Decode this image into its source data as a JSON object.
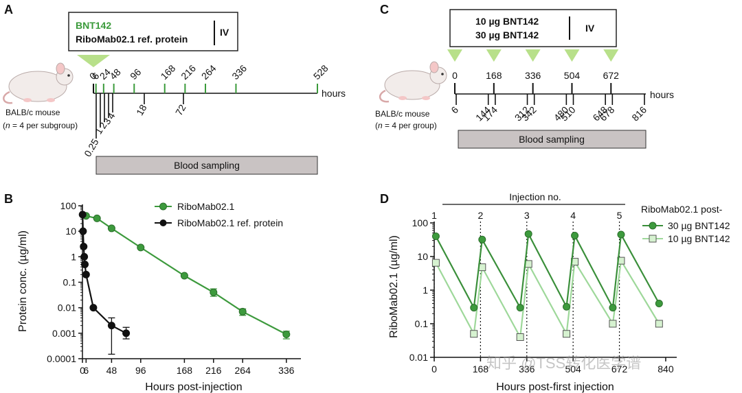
{
  "panels": {
    "A": {
      "letter": "A",
      "legend_top": "BNT142",
      "legend_bottom": "RiboMab02.1 ref. protein",
      "route": "IV",
      "mouse_label": "BALB/c mouse",
      "mouse_n_italic": "n",
      "mouse_n_rest": " = 4 per subgroup)",
      "mouse_n_open": "(",
      "hours_label": "hours",
      "sampling_label": "Blood sampling",
      "timeline_max": 528,
      "top_ticks": [
        {
          "label": "0",
          "value": 0
        },
        {
          "label": "6",
          "value": 6
        },
        {
          "label": "24",
          "value": 24
        },
        {
          "label": "48",
          "value": 48
        },
        {
          "label": "96",
          "value": 96
        },
        {
          "label": "168",
          "value": 168
        },
        {
          "label": "216",
          "value": 216
        },
        {
          "label": "264",
          "value": 264
        },
        {
          "label": "336",
          "value": 336
        },
        {
          "label": "528",
          "value": 528
        }
      ],
      "bottom_ticks": [
        "0.25",
        "1",
        "2",
        "3",
        "4",
        "18",
        "72"
      ]
    },
    "B": {
      "letter": "B",
      "ylabel": "Protein conc. (µg/ml)",
      "xlabel": "Hours post-injection",
      "legend": [
        "RiboMab02.1",
        "RiboMab02.1 ref. protein"
      ]
    },
    "C": {
      "letter": "C",
      "dose_1": "10 µg BNT142",
      "dose_2": "30 µg BNT142",
      "route": "IV",
      "mouse_label": "BALB/c mouse",
      "mouse_n_open": "(",
      "mouse_n_italic": "n",
      "mouse_n_rest": " = 4 per group)",
      "hours_label": "hours",
      "sampling_label": "Blood sampling",
      "top_ticks": [
        "0",
        "168",
        "336",
        "504",
        "672"
      ],
      "bottom_ticks": [
        "6",
        "144",
        "174",
        "312",
        "342",
        "480",
        "510",
        "648",
        "678",
        "816"
      ]
    },
    "D": {
      "letter": "D",
      "ylabel": "RiboMab02.1 (µg/ml)",
      "xlabel": "Hours post-first injection",
      "injection_label": "Injection no.",
      "injection_numbers": [
        "1",
        "2",
        "3",
        "4",
        "5"
      ],
      "legend_title": "RiboMab02.1 post-",
      "legend": [
        "30 µg BNT142",
        "10 µg BNT142"
      ]
    }
  },
  "colors": {
    "green_dark": "#3a8f3a",
    "green_marker": "#3d9a3d",
    "green_light": "#9ed89a",
    "green_light_marker": "#d6f2d0",
    "black": "#111111",
    "gray_bar": "#c9c3c3",
    "triangle": "#b8e08a"
  },
  "watermark": "知乎 @TSS转化医学谱",
  "chart_data": [
    {
      "panel": "B",
      "type": "line",
      "title": "",
      "xlabel": "Hours post-injection",
      "ylabel": "Protein conc. (µg/ml)",
      "yscale": "log",
      "ylim": [
        0.0001,
        100
      ],
      "xlim": [
        0,
        360
      ],
      "x_ticks": [
        0,
        6,
        48,
        96,
        168,
        216,
        264,
        336
      ],
      "y_ticks": [
        {
          "value": 100,
          "label": "100"
        },
        {
          "value": 10,
          "label": "10"
        },
        {
          "value": 1,
          "label": "1"
        },
        {
          "value": 0.1,
          "label": "0.1"
        },
        {
          "value": 0.01,
          "label": "0.01"
        },
        {
          "value": 0.001,
          "label": "0.001"
        },
        {
          "value": 0.0001,
          "label": "0.0001"
        }
      ],
      "series": [
        {
          "name": "RiboMab02.1",
          "color": "#3d9a3d",
          "marker": "circle",
          "x": [
            6,
            24,
            48,
            96,
            168,
            216,
            264,
            336
          ],
          "y": [
            40,
            32,
            13,
            2.3,
            0.18,
            0.04,
            0.007,
            0.0009
          ],
          "err_low": [
            null,
            null,
            null,
            null,
            null,
            0.028,
            0.005,
            0.0006
          ],
          "err_high": [
            null,
            null,
            null,
            null,
            null,
            0.055,
            0.009,
            0.0012
          ]
        },
        {
          "name": "RiboMab02.1 ref. protein",
          "color": "#111111",
          "marker": "circle",
          "x": [
            0.25,
            1,
            2,
            3,
            4,
            6,
            18,
            48,
            72
          ],
          "y": [
            45,
            10,
            2.5,
            1.0,
            0.5,
            0.2,
            0.01,
            0.002,
            0.001
          ],
          "err_low": [
            null,
            null,
            null,
            null,
            null,
            null,
            null,
            0.00015,
            0.0006
          ],
          "err_high": [
            null,
            null,
            null,
            null,
            null,
            null,
            null,
            0.004,
            0.0017
          ]
        }
      ],
      "legend_position": "top-right"
    },
    {
      "panel": "D",
      "type": "line",
      "title": "",
      "xlabel": "Hours post-first injection",
      "ylabel": "RiboMab02.1 (µg/ml)",
      "yscale": "log",
      "ylim": [
        0.01,
        100
      ],
      "xlim": [
        0,
        880
      ],
      "x_ticks": [
        0,
        168,
        336,
        504,
        672,
        840
      ],
      "y_ticks": [
        {
          "value": 100,
          "label": "100"
        },
        {
          "value": 10,
          "label": "10"
        },
        {
          "value": 1,
          "label": "1"
        },
        {
          "value": 0.1,
          "label": "0.1"
        },
        {
          "value": 0.01,
          "label": "0.01"
        }
      ],
      "injection_times": [
        0,
        168,
        336,
        504,
        672
      ],
      "series": [
        {
          "name": "30 µg BNT142",
          "color": "#3a8f3a",
          "marker": "circle",
          "x": [
            6,
            144,
            174,
            312,
            342,
            480,
            510,
            648,
            678,
            816
          ],
          "y": [
            40,
            0.3,
            32,
            0.3,
            47,
            0.32,
            42,
            0.3,
            45,
            0.4
          ]
        },
        {
          "name": "10 µg BNT142",
          "color": "#9ed89a",
          "marker": "square",
          "x": [
            6,
            144,
            174,
            312,
            342,
            480,
            510,
            648,
            678,
            816
          ],
          "y": [
            6.5,
            0.05,
            4.8,
            0.04,
            6.0,
            0.05,
            7.0,
            0.1,
            7.5,
            0.1
          ]
        }
      ],
      "legend_position": "top-right"
    }
  ]
}
